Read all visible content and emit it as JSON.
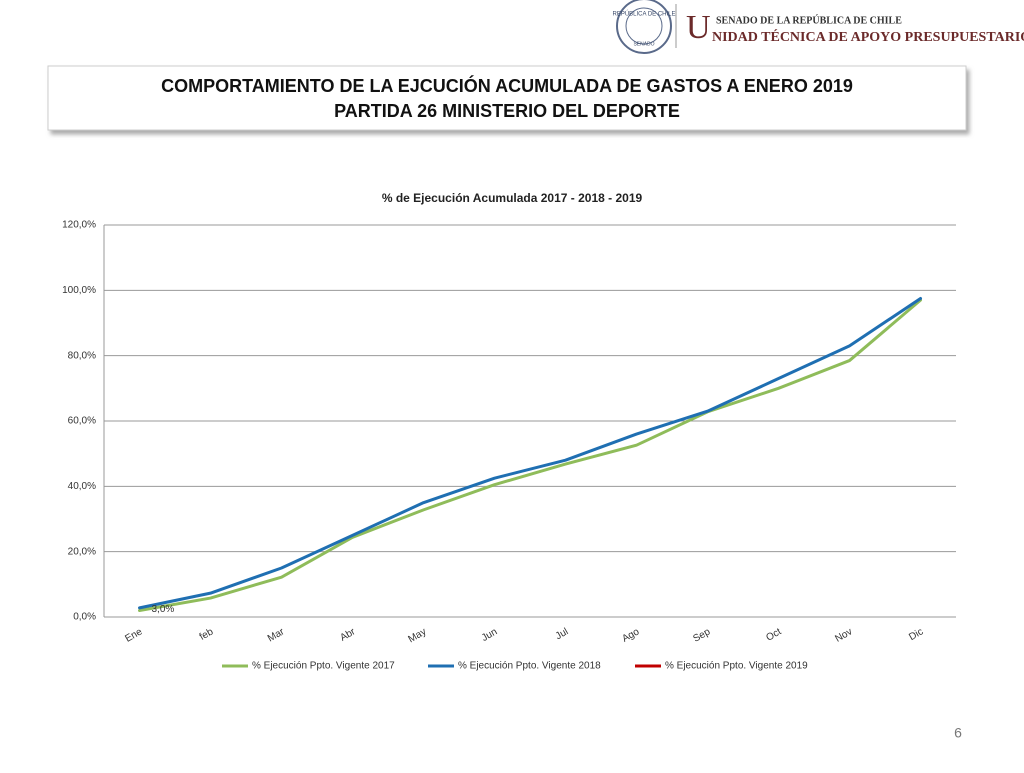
{
  "header": {
    "seal_top": "REPÚBLICA DE CHILE",
    "seal_bottom": "SENADO",
    "senate": "SENADO DE LA REPÚBLICA DE CHILE",
    "unit_initial": "U",
    "unit_rest": "NIDAD TÉCNICA DE APOYO PRESUPUESTARIO"
  },
  "slide_title": [
    "COMPORTAMIENTO DE LA EJCUCIÓN ACUMULADA DE GASTOS A ENERO 2019",
    "PARTIDA 26 MINISTERIO DEL DEPORTE"
  ],
  "chart_data": {
    "type": "line",
    "title": "% de Ejecución Acumulada 2017 - 2018 - 2019",
    "categories": [
      "Ene",
      "feb",
      "Mar",
      "Abr",
      "May",
      "Jun",
      "Jul",
      "Ago",
      "Sep",
      "Oct",
      "Nov",
      "Dic"
    ],
    "series": [
      {
        "name": "% Ejecución Ppto. Vigente 2017",
        "color": "#8fbc5a",
        "values": [
          2.0,
          5.8,
          12.2,
          24.4,
          32.8,
          40.5,
          46.8,
          52.6,
          62.8,
          70.0,
          78.5,
          97.0
        ]
      },
      {
        "name": "% Ejecución Ppto. Vigente 2018",
        "color": "#1f6fb2",
        "values": [
          2.8,
          7.3,
          15.0,
          25.0,
          35.0,
          42.5,
          48.0,
          56.0,
          63.0,
          73.0,
          83.0,
          97.5
        ]
      },
      {
        "name": "% Ejecución Ppto. Vigente 2019",
        "color": "#c00000",
        "values": [
          3.0,
          null,
          null,
          null,
          null,
          null,
          null,
          null,
          null,
          null,
          null,
          null
        ],
        "value_labels": [
          "3,0%",
          null,
          null,
          null,
          null,
          null,
          null,
          null,
          null,
          null,
          null,
          null
        ]
      }
    ],
    "ylim": [
      0,
      120
    ],
    "yticks": [
      {
        "value": 0,
        "label": "0,0%"
      },
      {
        "value": 20,
        "label": "20,0%"
      },
      {
        "value": 40,
        "label": "40,0%"
      },
      {
        "value": 60,
        "label": "60,0%"
      },
      {
        "value": 80,
        "label": "80,0%"
      },
      {
        "value": 100,
        "label": "100,0%"
      },
      {
        "value": 120,
        "label": "120,0%"
      }
    ],
    "grid": true,
    "legend": "bottom"
  },
  "page_number": "6"
}
